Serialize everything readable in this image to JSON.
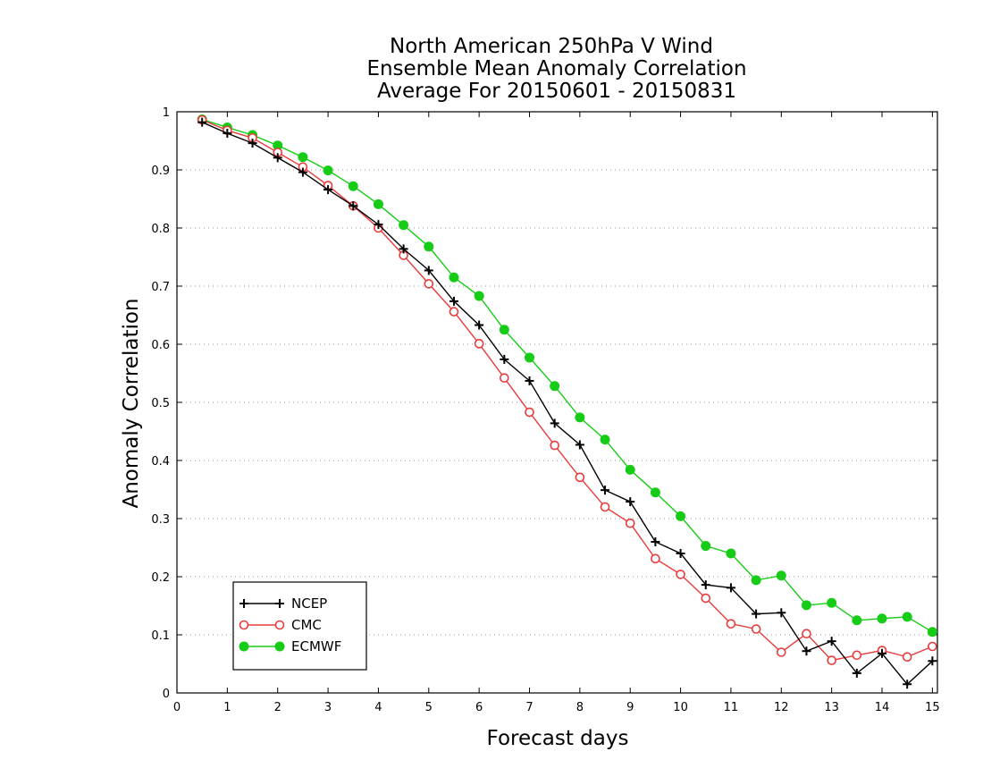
{
  "chart_data": {
    "type": "line",
    "title": [
      "North American 250hPa V Wind",
      "Ensemble Mean Anomaly Correlation",
      "Average For 20150601 - 20150831"
    ],
    "xlabel": "Forecast days",
    "ylabel": "Anomaly Correlation",
    "xlim": [
      0,
      15.1
    ],
    "ylim": [
      0,
      1
    ],
    "xticks": [
      "0",
      "1",
      "2",
      "3",
      "4",
      "5",
      "6",
      "7",
      "8",
      "9",
      "10",
      "11",
      "12",
      "13",
      "14",
      "15"
    ],
    "yticks": [
      "0",
      "0.1",
      "0.2",
      "0.3",
      "0.4",
      "0.5",
      "0.6",
      "0.7",
      "0.8",
      "0.9",
      "1"
    ],
    "grid": "horizontal dotted",
    "legend_position": "bottom-left",
    "x": [
      0.5,
      1,
      1.5,
      2,
      2.5,
      3,
      3.5,
      4,
      4.5,
      5,
      5.5,
      6,
      6.5,
      7,
      7.5,
      8,
      8.5,
      9,
      9.5,
      10,
      10.5,
      11,
      11.5,
      12,
      12.5,
      13,
      13.5,
      14,
      14.5,
      15
    ],
    "series": [
      {
        "name": "NCEP",
        "color": "#000000",
        "marker": "plus",
        "values": [
          0.982,
          0.963,
          0.946,
          0.921,
          0.896,
          0.866,
          0.838,
          0.806,
          0.764,
          0.727,
          0.674,
          0.633,
          0.574,
          0.537,
          0.464,
          0.427,
          0.349,
          0.329,
          0.26,
          0.24,
          0.186,
          0.181,
          0.136,
          0.138,
          0.072,
          0.089,
          0.034,
          0.068,
          0.015,
          0.055
        ]
      },
      {
        "name": "CMC",
        "color": "#e83c3c",
        "marker": "open-circle",
        "values": [
          0.986,
          0.968,
          0.955,
          0.93,
          0.905,
          0.873,
          0.838,
          0.8,
          0.753,
          0.704,
          0.656,
          0.601,
          0.542,
          0.483,
          0.426,
          0.371,
          0.32,
          0.292,
          0.231,
          0.204,
          0.163,
          0.119,
          0.11,
          0.07,
          0.102,
          0.056,
          0.065,
          0.073,
          0.062,
          0.08
        ]
      },
      {
        "name": "ECMWF",
        "color": "#16cc16",
        "marker": "filled-circle",
        "values": [
          0.987,
          0.973,
          0.96,
          0.942,
          0.922,
          0.899,
          0.872,
          0.841,
          0.805,
          0.768,
          0.715,
          0.683,
          0.625,
          0.577,
          0.528,
          0.474,
          0.436,
          0.384,
          0.345,
          0.304,
          0.253,
          0.24,
          0.194,
          0.202,
          0.151,
          0.155,
          0.125,
          0.128,
          0.131,
          0.105
        ]
      }
    ]
  }
}
